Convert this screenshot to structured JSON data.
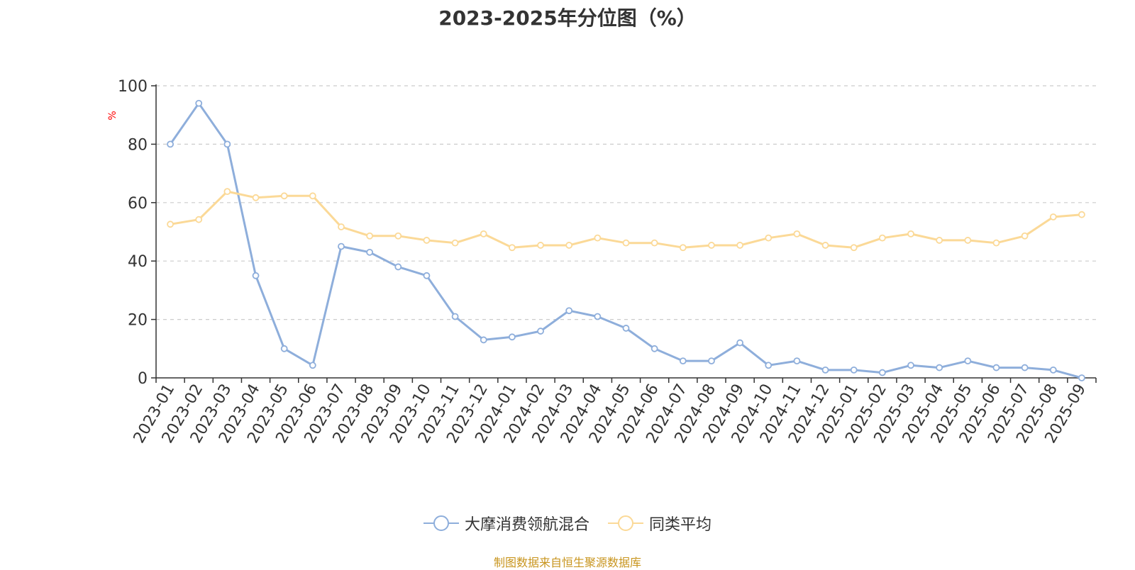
{
  "chart_data": {
    "type": "line",
    "title": "2023-2025年分位图（%）",
    "ylabel": "%",
    "ylim": [
      0,
      100
    ],
    "yticks": [
      0,
      20,
      40,
      60,
      80,
      100
    ],
    "grid": true,
    "legend_position": "bottom",
    "categories": [
      "2023-01",
      "2023-02",
      "2023-03",
      "2023-04",
      "2023-05",
      "2023-06",
      "2023-07",
      "2023-08",
      "2023-09",
      "2023-10",
      "2023-11",
      "2023-12",
      "2024-01",
      "2024-02",
      "2024-03",
      "2024-04",
      "2024-05",
      "2024-06",
      "2024-07",
      "2024-08",
      "2024-09",
      "2024-10",
      "2024-11",
      "2024-12",
      "2025-01",
      "2025-02",
      "2025-03",
      "2025-04",
      "2025-05",
      "2025-06",
      "2025-07",
      "2025-08",
      "2025-09"
    ],
    "series": [
      {
        "name": "大摩消费领航混合",
        "color": "#8eaedb",
        "values": [
          80,
          94,
          80,
          35,
          10,
          4.3,
          45,
          43,
          38,
          35,
          21,
          13,
          14,
          16,
          23,
          21,
          17,
          10,
          5.8,
          5.8,
          12,
          4.3,
          5.8,
          2.7,
          2.7,
          1.8,
          4.3,
          3.5,
          5.8,
          3.5,
          3.5,
          2.7,
          0
        ]
      },
      {
        "name": "同类平均",
        "color": "#fbd997",
        "values": [
          52.6,
          54.2,
          63.8,
          61.7,
          62.3,
          62.3,
          51.7,
          48.6,
          48.6,
          47.1,
          46.2,
          49.3,
          44.6,
          45.4,
          45.4,
          47.9,
          46.2,
          46.2,
          44.6,
          45.4,
          45.4,
          47.9,
          49.3,
          45.4,
          44.6,
          47.9,
          49.3,
          47.1,
          47.1,
          46.2,
          48.6,
          55.1,
          55.9
        ]
      }
    ]
  },
  "footer": {
    "source": "制图数据来自恒生聚源数据库"
  }
}
